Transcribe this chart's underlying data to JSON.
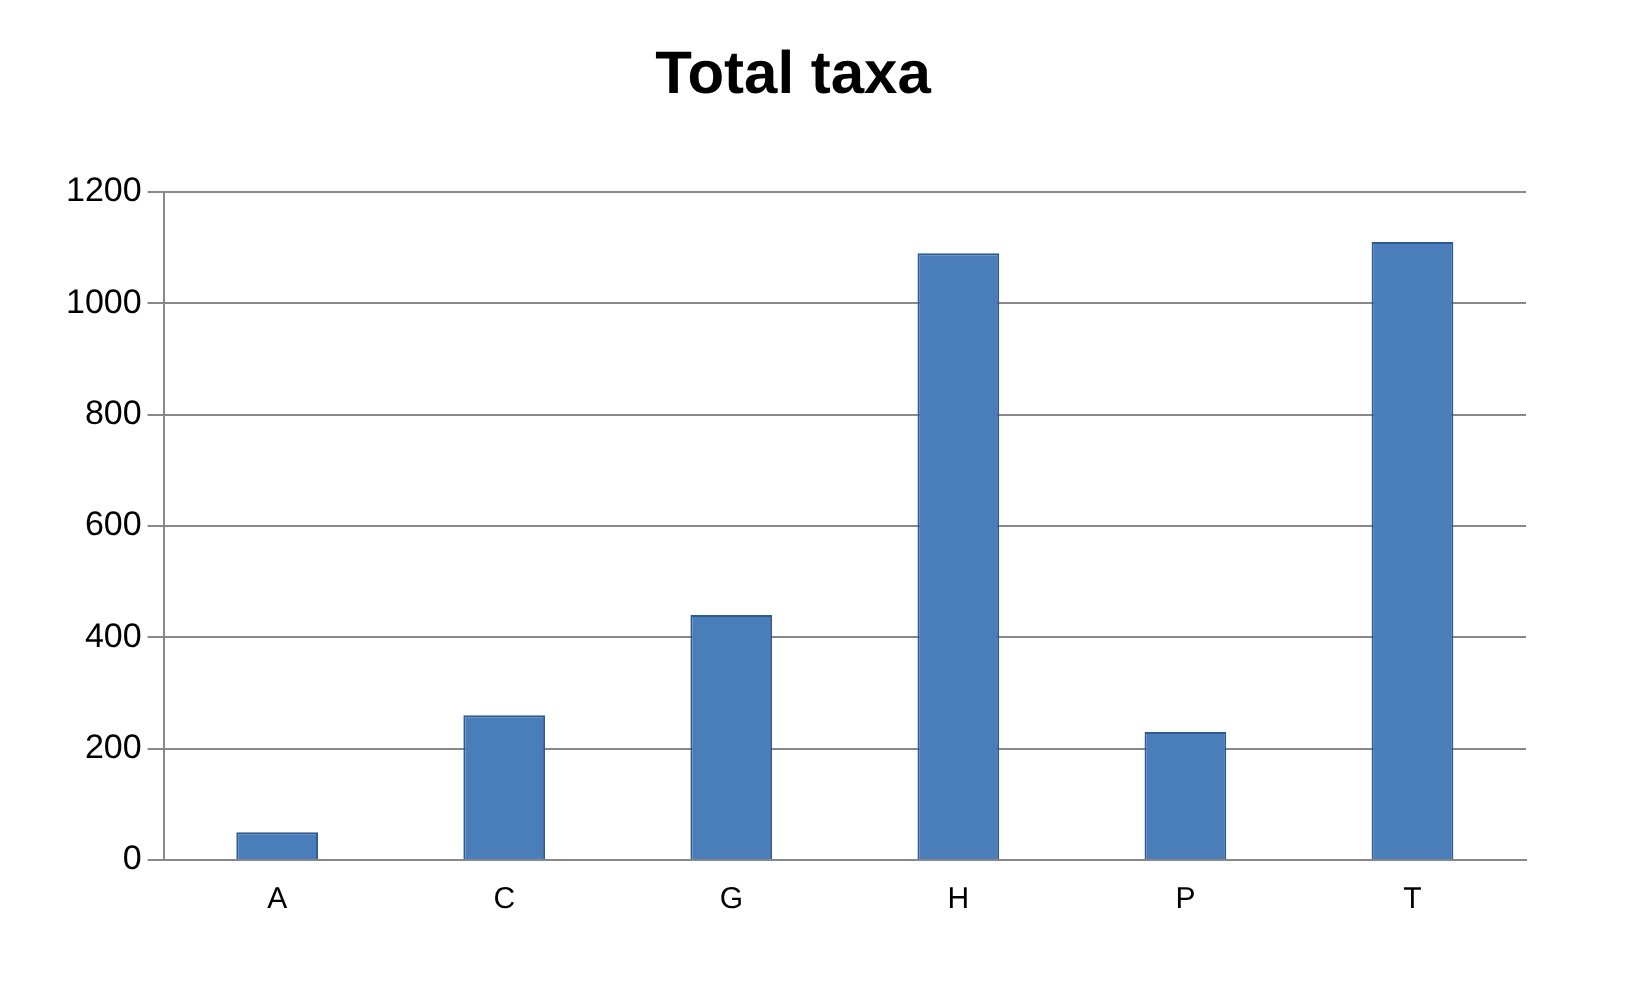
{
  "chart_data": {
    "type": "bar",
    "title": "Total taxa",
    "categories": [
      "A",
      "C",
      "G",
      "H",
      "P",
      "T"
    ],
    "values": [
      50,
      260,
      440,
      1090,
      230,
      1110
    ],
    "color": "#4a7ebb",
    "ylim": [
      0,
      1200
    ],
    "yticks": [
      0,
      200,
      400,
      600,
      800,
      1000,
      1200
    ],
    "grid": "y",
    "legend": false
  }
}
